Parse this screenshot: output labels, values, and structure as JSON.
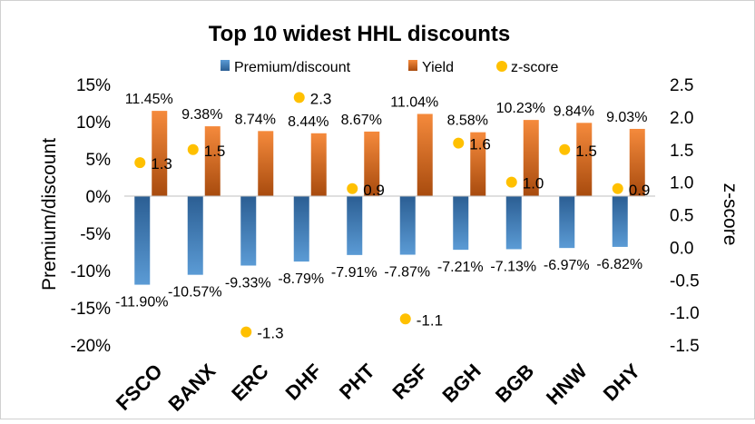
{
  "chart_data": {
    "type": "bar",
    "title": "Top 10 widest HHL discounts",
    "categories": [
      "FSCO",
      "BANX",
      "ERC",
      "DHF",
      "PHT",
      "RSF",
      "BGH",
      "BGB",
      "HNW",
      "DHY"
    ],
    "series": [
      {
        "name": "Premium/discount",
        "axis": "left",
        "type": "bar",
        "color": "#3A7FC1",
        "values": [
          -11.9,
          -10.57,
          -9.33,
          -8.79,
          -7.91,
          -7.87,
          -7.21,
          -7.13,
          -6.97,
          -6.82
        ],
        "labels": [
          "-11.90%",
          "-10.57%",
          "-9.33%",
          "-8.79%",
          "-7.91%",
          "-7.87%",
          "-7.21%",
          "-7.13%",
          "-6.97%",
          "-6.82%"
        ]
      },
      {
        "name": "Yield",
        "axis": "left",
        "type": "bar",
        "color": "#E46C1F",
        "values": [
          11.45,
          9.38,
          8.74,
          8.44,
          8.67,
          11.04,
          8.58,
          10.23,
          9.84,
          9.03
        ],
        "labels": [
          "11.45%",
          "9.38%",
          "8.74%",
          "8.44%",
          "8.67%",
          "11.04%",
          "8.58%",
          "10.23%",
          "9.84%",
          "9.03%"
        ]
      },
      {
        "name": "z-score",
        "axis": "right",
        "type": "scatter",
        "color": "#FFC000",
        "values": [
          1.3,
          1.5,
          -1.3,
          2.3,
          0.9,
          -1.1,
          1.6,
          1.0,
          1.5,
          0.9
        ],
        "labels": [
          "1.3",
          "1.5",
          "-1.3",
          "2.3",
          "0.9",
          "-1.1",
          "1.6",
          "1.0",
          "1.5",
          "0.9"
        ]
      }
    ],
    "y_left": {
      "label": "Premium/discount",
      "lim": [
        -20,
        15
      ],
      "ticks": [
        15,
        10,
        5,
        0,
        -5,
        -10,
        -15,
        -20
      ],
      "tick_labels": [
        "15%",
        "10%",
        "5%",
        "0%",
        "-5%",
        "-10%",
        "-15%",
        "-20%"
      ]
    },
    "y_right": {
      "label": "z-score",
      "lim": [
        -1.5,
        2.5
      ],
      "ticks": [
        2.5,
        2.0,
        1.5,
        1.0,
        0.5,
        0.0,
        -0.5,
        -1.0,
        -1.5
      ],
      "tick_labels": [
        "2.5",
        "2.0",
        "1.5",
        "1.0",
        "0.5",
        "0.0",
        "-0.5",
        "-1.0",
        "-1.5"
      ]
    },
    "grid": false,
    "legend_position": "top"
  }
}
